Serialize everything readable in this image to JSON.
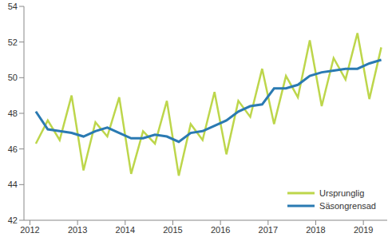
{
  "chart_data": {
    "type": "line",
    "x": [
      2012.125,
      2012.375,
      2012.625,
      2012.875,
      2013.125,
      2013.375,
      2013.625,
      2013.875,
      2014.125,
      2014.375,
      2014.625,
      2014.875,
      2015.125,
      2015.375,
      2015.625,
      2015.875,
      2016.125,
      2016.375,
      2016.625,
      2016.875,
      2017.125,
      2017.375,
      2017.625,
      2017.875,
      2018.125,
      2018.375,
      2018.625,
      2018.875,
      2019.125,
      2019.375
    ],
    "series": [
      {
        "name": "Ursprunglig",
        "color": "#bdd64b",
        "values": [
          46.3,
          47.6,
          46.5,
          49.0,
          44.8,
          47.5,
          46.7,
          48.9,
          44.6,
          47.0,
          46.3,
          48.7,
          44.5,
          47.4,
          46.5,
          49.2,
          45.7,
          48.7,
          47.8,
          50.5,
          47.4,
          50.1,
          48.9,
          52.1,
          48.4,
          51.1,
          49.9,
          52.5,
          48.8,
          51.7
        ]
      },
      {
        "name": "Säsongrensad",
        "color": "#2a7ab2",
        "values": [
          48.1,
          47.1,
          47.0,
          46.9,
          46.7,
          47.0,
          47.2,
          46.9,
          46.6,
          46.6,
          46.8,
          46.7,
          46.4,
          46.9,
          47.0,
          47.3,
          47.6,
          48.1,
          48.4,
          48.5,
          49.4,
          49.4,
          49.6,
          50.1,
          50.3,
          50.4,
          50.5,
          50.5,
          50.8,
          51.0
        ]
      }
    ],
    "xlim": [
      2011.875,
      2019.5
    ],
    "xticks": [
      2012,
      2013,
      2014,
      2015,
      2016,
      2017,
      2018,
      2019
    ],
    "ylim": [
      42,
      54
    ],
    "yticks": [
      42,
      44,
      46,
      48,
      50,
      52,
      54
    ],
    "grid": false,
    "legend": "lower right"
  }
}
